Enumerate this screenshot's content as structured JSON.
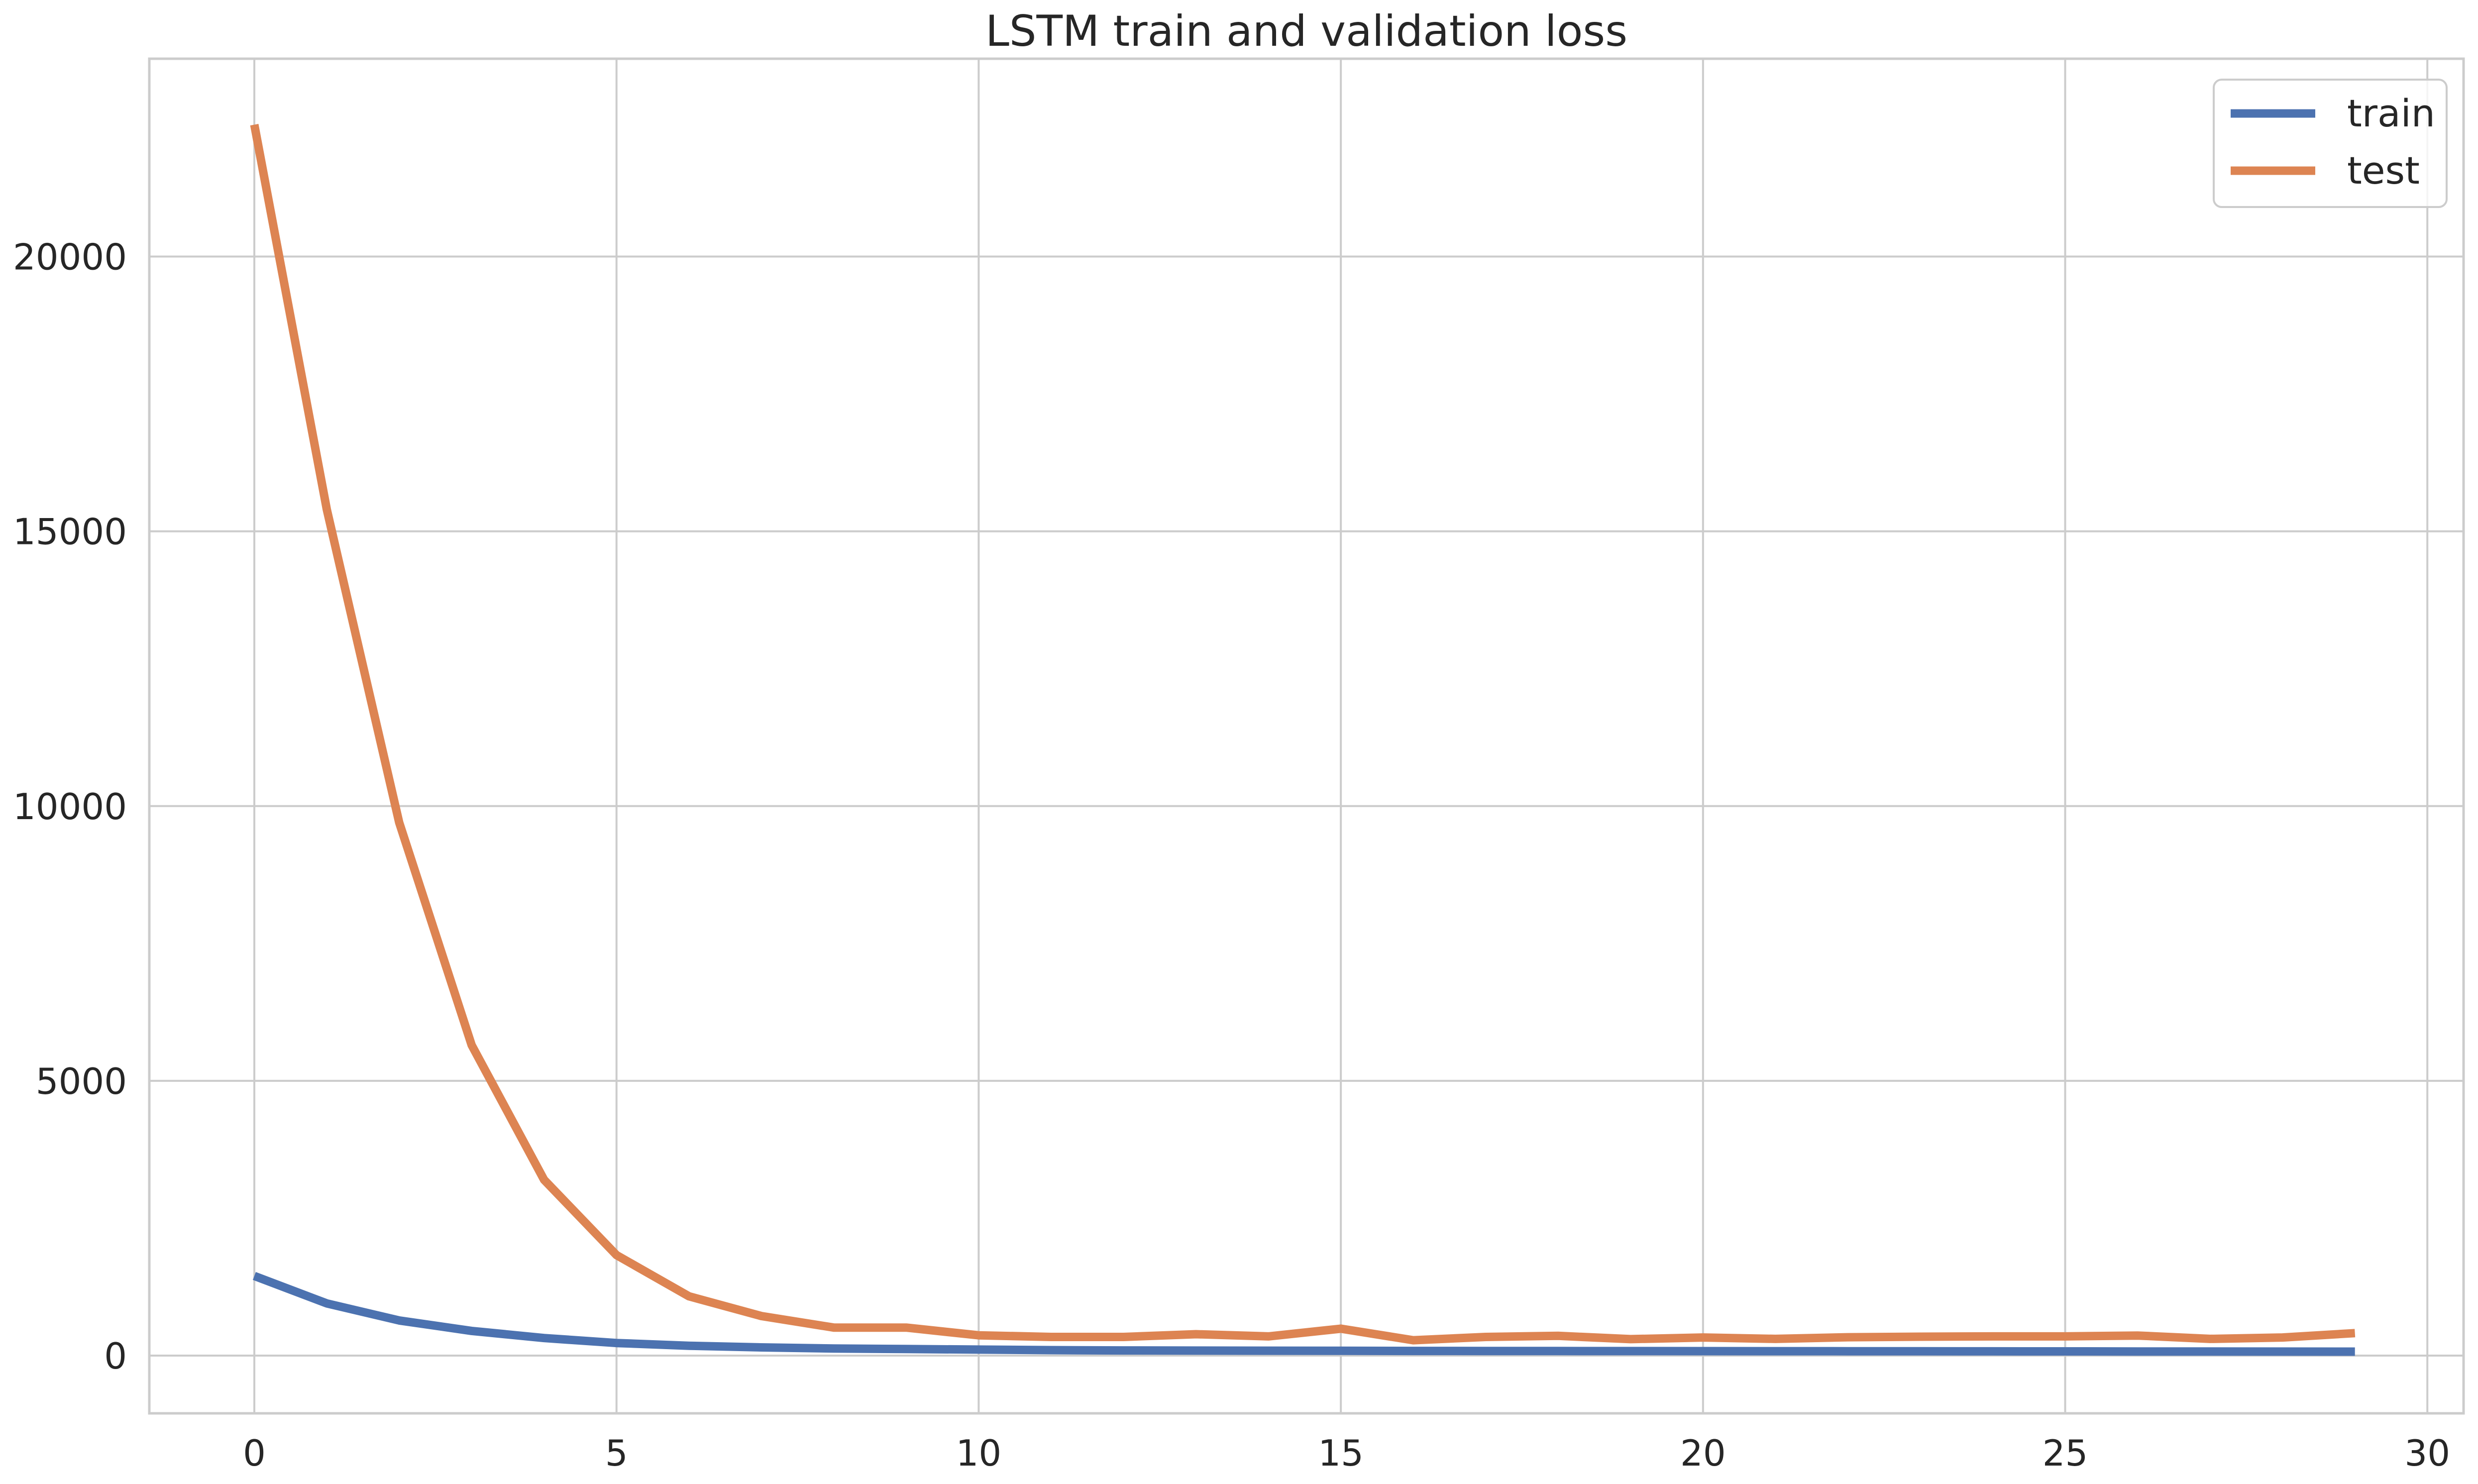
{
  "chart_data": {
    "type": "line",
    "title": "LSTM train and validation loss",
    "xlabel": "",
    "ylabel": "",
    "xlim": [
      -1.45,
      30.5
    ],
    "ylim": [
      -1050,
      23600
    ],
    "x_ticks": [
      0,
      5,
      10,
      15,
      20,
      25,
      30
    ],
    "y_ticks": [
      0,
      5000,
      10000,
      15000,
      20000
    ],
    "grid": true,
    "legend_position": "top-right",
    "x": [
      0,
      1,
      2,
      3,
      4,
      5,
      6,
      7,
      8,
      9,
      10,
      11,
      12,
      13,
      14,
      15,
      16,
      17,
      18,
      19,
      20,
      21,
      22,
      23,
      24,
      25,
      26,
      27,
      28,
      29
    ],
    "series": [
      {
        "name": "train",
        "color": "#4c72b0",
        "values": [
          1450,
          950,
          640,
          450,
          320,
          230,
          180,
          150,
          130,
          120,
          110,
          100,
          95,
          92,
          90,
          88,
          86,
          85,
          84,
          83,
          82,
          81,
          80,
          79,
          78,
          77,
          76,
          75,
          74,
          73
        ]
      },
      {
        "name": "test",
        "color": "#dd8452",
        "values": [
          22400,
          15400,
          9700,
          5650,
          3200,
          1830,
          1080,
          720,
          510,
          510,
          370,
          340,
          340,
          390,
          350,
          490,
          280,
          340,
          360,
          300,
          330,
          305,
          335,
          345,
          350,
          350,
          365,
          305,
          330,
          410
        ]
      }
    ]
  }
}
